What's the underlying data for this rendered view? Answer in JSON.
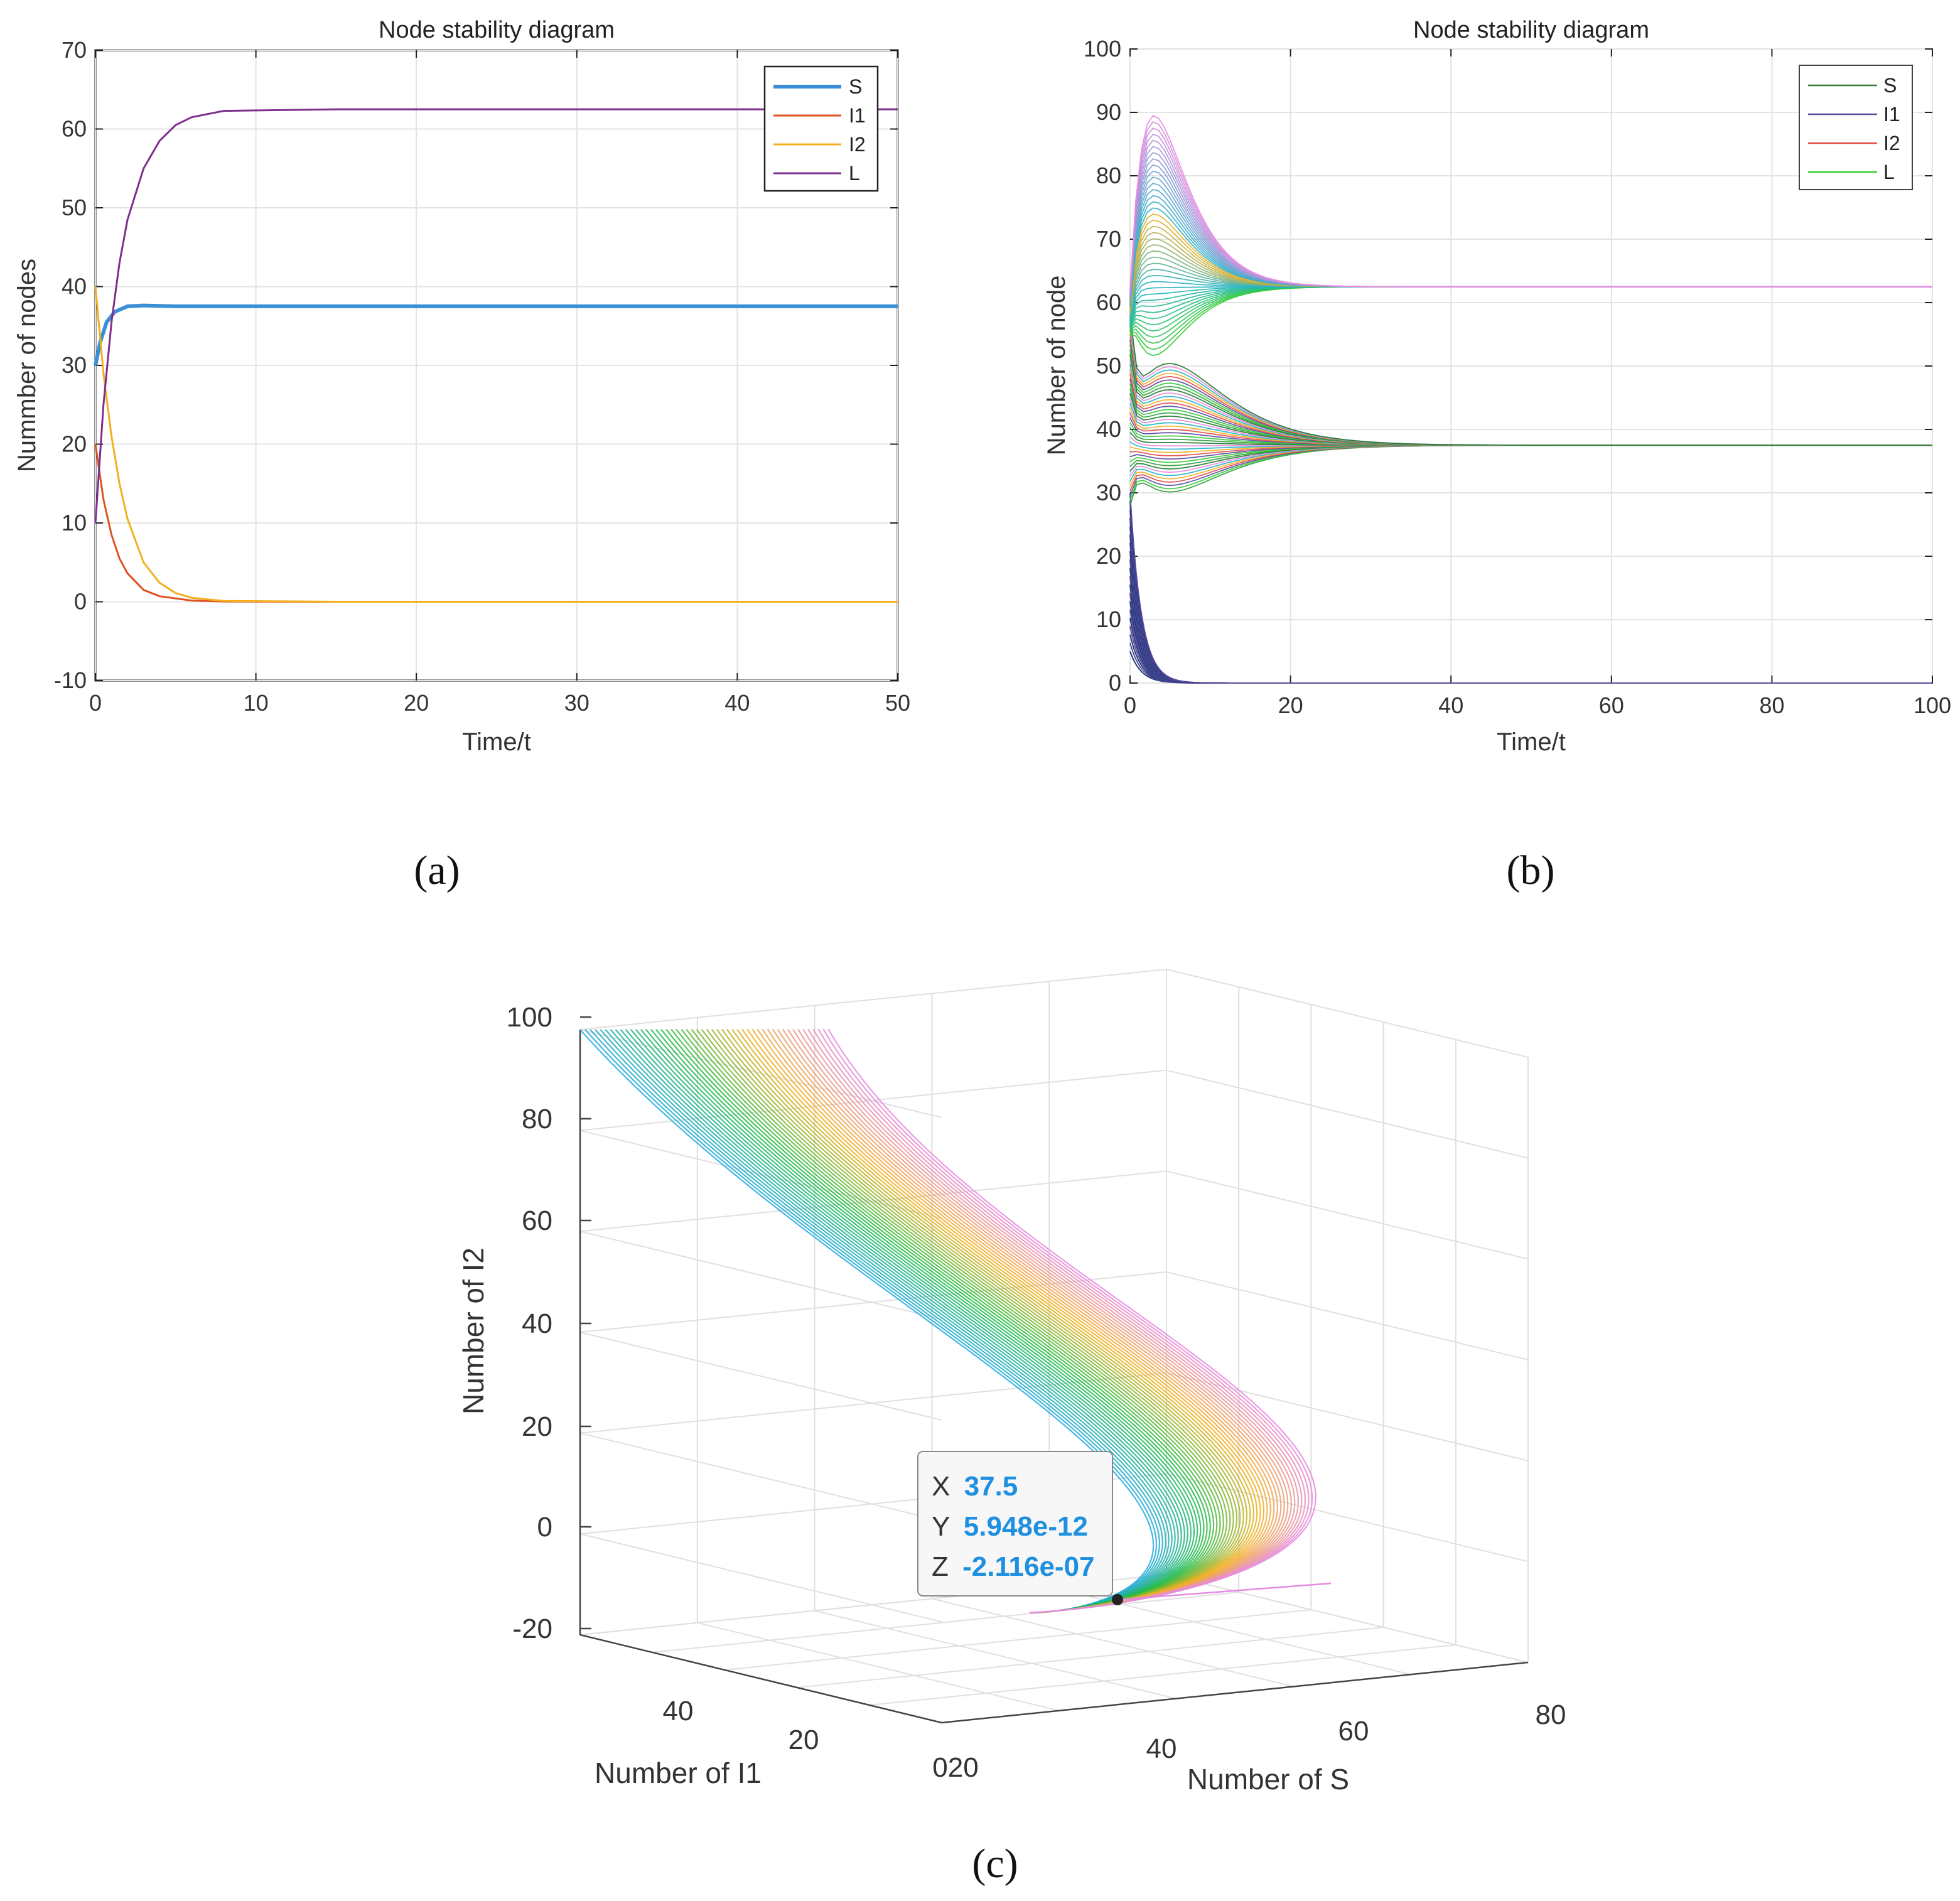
{
  "captions": {
    "a": "(a)",
    "b": "(b)",
    "c": "(c)"
  },
  "chart_data": [
    {
      "id": "a",
      "type": "line",
      "title": "Node stability diagram",
      "xlabel": "Time/t",
      "ylabel": "Nummber of nodes",
      "xlim": [
        0,
        50
      ],
      "ylim": [
        -10,
        70
      ],
      "xticks": [
        0,
        10,
        20,
        30,
        40,
        50
      ],
      "yticks": [
        -10,
        0,
        10,
        20,
        30,
        40,
        50,
        60,
        70
      ],
      "grid": true,
      "legend_position": "top-right",
      "series": [
        {
          "name": "S",
          "color": "#3b8fd6",
          "x": [
            0,
            0.3,
            0.7,
            1.2,
            2,
            3,
            5,
            8,
            15,
            30,
            50
          ],
          "values": [
            30,
            33,
            35.5,
            36.8,
            37.5,
            37.6,
            37.5,
            37.5,
            37.5,
            37.5,
            37.5
          ]
        },
        {
          "name": "I1",
          "color": "#e0521f",
          "x": [
            0,
            0.5,
            1,
            1.5,
            2,
            3,
            4,
            6,
            8,
            15,
            50
          ],
          "values": [
            20,
            13,
            8.5,
            5.5,
            3.6,
            1.5,
            0.7,
            0.15,
            0.03,
            0,
            0
          ]
        },
        {
          "name": "I2",
          "color": "#f2b01e",
          "x": [
            0,
            0.5,
            1,
            1.5,
            2,
            3,
            4,
            5,
            6,
            8,
            15,
            50
          ],
          "values": [
            40,
            29,
            21,
            15,
            10.5,
            5,
            2.4,
            1.1,
            0.5,
            0.1,
            0,
            0
          ]
        },
        {
          "name": "L",
          "color": "#7e2f8e",
          "x": [
            0,
            0.5,
            1,
            1.5,
            2,
            3,
            4,
            5,
            6,
            8,
            15,
            50
          ],
          "values": [
            10,
            25,
            35.5,
            43,
            48.5,
            55,
            58.5,
            60.5,
            61.5,
            62.3,
            62.5,
            62.5
          ]
        }
      ]
    },
    {
      "id": "b",
      "type": "line",
      "title": "Node stability diagram",
      "xlabel": "Time/t",
      "ylabel": "Number of node",
      "xlim": [
        0,
        100
      ],
      "ylim": [
        0,
        100
      ],
      "xticks": [
        0,
        20,
        40,
        60,
        80,
        100
      ],
      "yticks": [
        0,
        10,
        20,
        30,
        40,
        50,
        60,
        70,
        80,
        90,
        100
      ],
      "grid": true,
      "legend_position": "top-right",
      "legend": [
        {
          "name": "S",
          "color": "#2e7d32"
        },
        {
          "name": "I1",
          "color": "#5b4a9e"
        },
        {
          "name": "I2",
          "color": "#e24b4b"
        },
        {
          "name": "L",
          "color": "#33cc33"
        }
      ],
      "equilibrium": {
        "S": 37.5,
        "L": 62.5,
        "I": 0
      },
      "curve_families": [
        {
          "name": "L",
          "start": [
            55,
            62
          ],
          "peak": [
            57,
            91
          ],
          "settle_time": 45,
          "count": 40
        },
        {
          "name": "S",
          "start": [
            28,
            58
          ],
          "settle_time": 30,
          "count": 40
        },
        {
          "name": "I",
          "start": [
            5,
            30
          ],
          "decay_time": 8,
          "count": 20
        }
      ]
    },
    {
      "id": "c",
      "type": "line",
      "projection": "3d",
      "xlabel": "Number of S",
      "ylabel": "Number of I1",
      "zlabel": "Number of I2",
      "xlim": [
        30,
        80
      ],
      "ylim": [
        0,
        50
      ],
      "zlim": [
        -20,
        100
      ],
      "xticks": [
        "40",
        "60",
        "80"
      ],
      "yticks": [
        "40",
        "20",
        "020"
      ],
      "zticks": [
        "100",
        "80",
        "60",
        "40",
        "20",
        "0",
        "-20"
      ],
      "grid": true,
      "datatip": {
        "x_label": "X",
        "x_value": "37.5",
        "y_label": "Y",
        "y_value": "5.948e-12",
        "z_label": "Z",
        "z_value": "-2.116e-07",
        "point": [
          37.5,
          0,
          0
        ]
      },
      "color_gradient": [
        "#22aadd",
        "#22bb44",
        "#f2b01e",
        "#e58ae0"
      ],
      "curve_count": 50
    }
  ]
}
